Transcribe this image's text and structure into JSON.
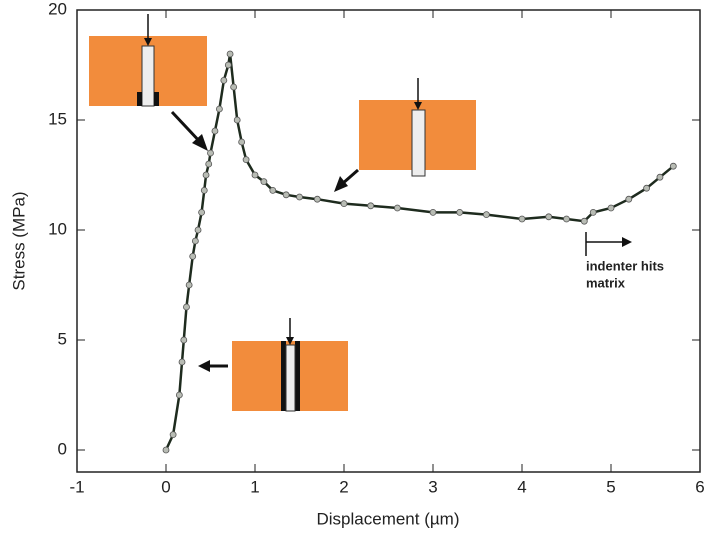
{
  "chart_data": {
    "type": "line",
    "x_label": "Displacement (µm)",
    "y_label": "Stress (MPa)",
    "annotations": [
      "indenter hits",
      "matrix"
    ],
    "x": [
      0,
      0.08,
      0.15,
      0.18,
      0.2,
      0.23,
      0.26,
      0.3,
      0.33,
      0.36,
      0.4,
      0.43,
      0.45,
      0.48,
      0.5,
      0.55,
      0.6,
      0.65,
      0.7,
      0.72,
      0.76,
      0.8,
      0.85,
      0.9,
      1.0,
      1.1,
      1.2,
      1.35,
      1.5,
      1.7,
      2.0,
      2.3,
      2.6,
      3.0,
      3.3,
      3.6,
      4.0,
      4.3,
      4.5,
      4.7,
      4.8,
      5.0,
      5.2,
      5.4,
      5.55,
      5.7
    ],
    "values": [
      0,
      0.7,
      2.5,
      4,
      5,
      6.5,
      7.5,
      8.8,
      9.5,
      10,
      10.8,
      11.8,
      12.5,
      13,
      13.5,
      14.5,
      15.5,
      16.8,
      17.5,
      18,
      16.5,
      15,
      14,
      13.2,
      12.5,
      12.2,
      11.8,
      11.6,
      11.5,
      11.4,
      11.2,
      11.1,
      11.0,
      10.8,
      10.8,
      10.7,
      10.5,
      10.6,
      10.5,
      10.4,
      10.8,
      11.0,
      11.4,
      11.9,
      12.4,
      12.9
    ],
    "color": "#1e2b1e",
    "marker_color": "#b8bcb4",
    "xlim": [
      -1,
      6
    ],
    "ylim": [
      -1,
      20
    ],
    "xticks": [
      -1,
      0,
      1,
      2,
      3,
      4,
      5,
      6
    ],
    "yticks": [
      0,
      5,
      10,
      15,
      20
    ]
  }
}
